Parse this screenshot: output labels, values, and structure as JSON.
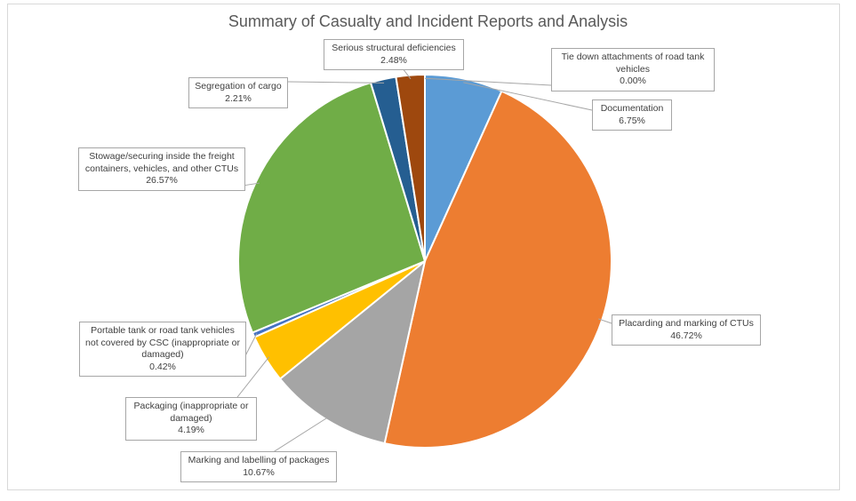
{
  "chart_data": {
    "type": "pie",
    "title": "Summary of Casualty and Incident Reports and Analysis",
    "slices": [
      {
        "name": "Documentation",
        "value": 6.75,
        "pct_label": "6.75%",
        "color": "#5B9BD5"
      },
      {
        "name": "Placarding and marking of CTUs",
        "value": 46.72,
        "pct_label": "46.72%",
        "color": "#ED7D31"
      },
      {
        "name": "Marking and labelling of packages",
        "value": 10.67,
        "pct_label": "10.67%",
        "color": "#A5A5A5"
      },
      {
        "name": "Packaging (inappropriate or damaged)",
        "value": 4.19,
        "pct_label": "4.19%",
        "color": "#FFC000"
      },
      {
        "name": "Portable tank or road tank vehicles not covered by CSC (inappropriate or damaged)",
        "value": 0.42,
        "pct_label": "0.42%",
        "color": "#4472C4"
      },
      {
        "name": "Stowage/securing inside the freight containers, vehicles, and other CTUs",
        "value": 26.57,
        "pct_label": "26.57%",
        "color": "#70AD47"
      },
      {
        "name": "Segregation of cargo",
        "value": 2.21,
        "pct_label": "2.21%",
        "color": "#255E91"
      },
      {
        "name": "Serious structural deficiencies",
        "value": 2.48,
        "pct_label": "2.48%",
        "color": "#9E480E"
      },
      {
        "name": "Tie down attachments of road tank vehicles",
        "value": 0.0,
        "pct_label": "0.00%",
        "color": "#636363"
      }
    ],
    "legend": "none",
    "data_labels": "callout"
  }
}
